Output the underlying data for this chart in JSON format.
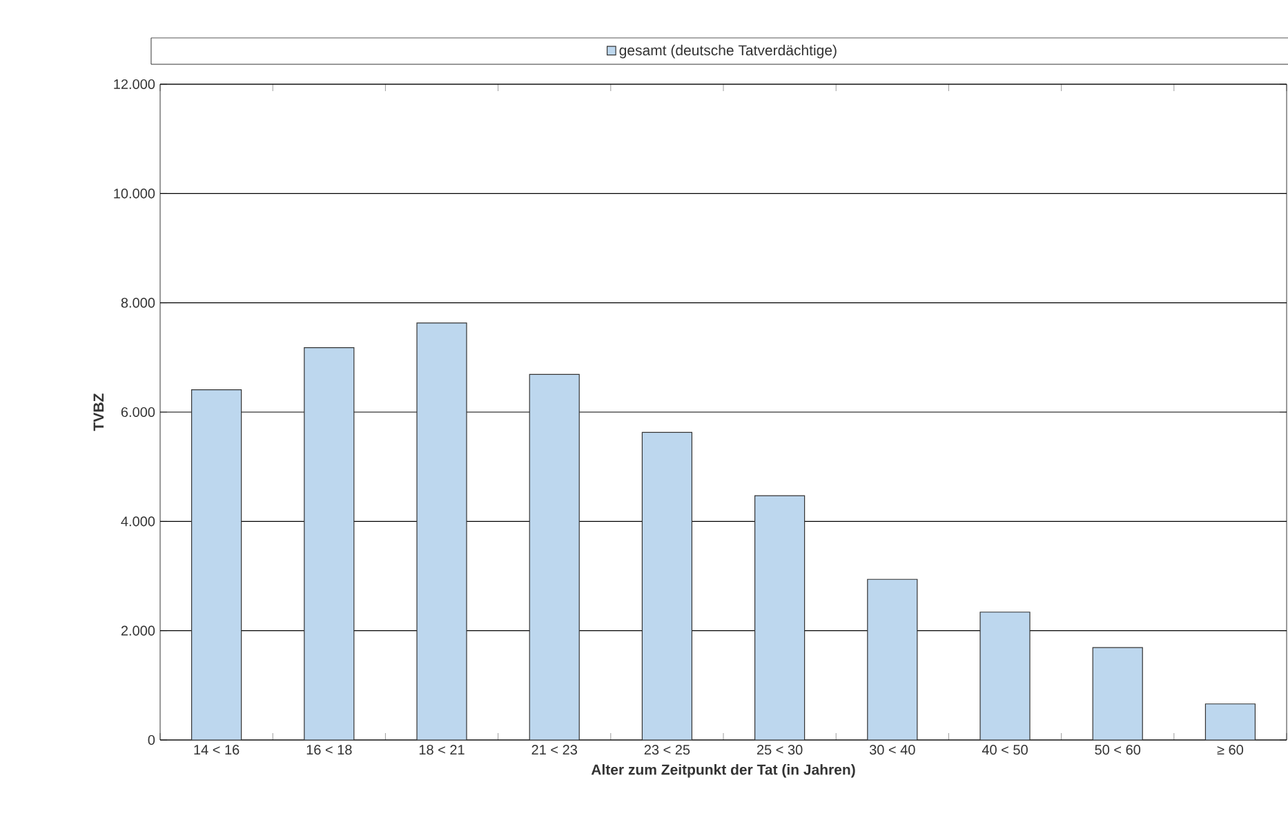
{
  "chart_data": {
    "type": "bar",
    "categories": [
      "14 < 16",
      "16 < 18",
      "18 < 21",
      "21 < 23",
      "23 < 25",
      "25 < 30",
      "30 < 40",
      "40 < 50",
      "50 < 60",
      "≥ 60"
    ],
    "series": [
      {
        "name": "gesamt (deutsche Tatverdächtige)",
        "color": "#bdd7ee",
        "values": [
          6410,
          7180,
          7630,
          6690,
          5630,
          4470,
          2940,
          2340,
          1690,
          660
        ]
      }
    ],
    "xlabel": "Alter zum Zeitpunkt der Tat (in Jahren)",
    "ylabel": "TVBZ",
    "ylim": [
      0,
      12000
    ],
    "yticks": [
      0,
      {
        "value": 2000,
        "label": "2.000"
      },
      {
        "value": 4000,
        "label": "4.000"
      },
      {
        "value": 6000,
        "label": "6.000"
      },
      {
        "value": 8000,
        "label": "8.000"
      },
      {
        "value": 10000,
        "label": "10.000"
      },
      {
        "value": 12000,
        "label": "12.000"
      }
    ],
    "grid": "y",
    "legend": "top"
  }
}
